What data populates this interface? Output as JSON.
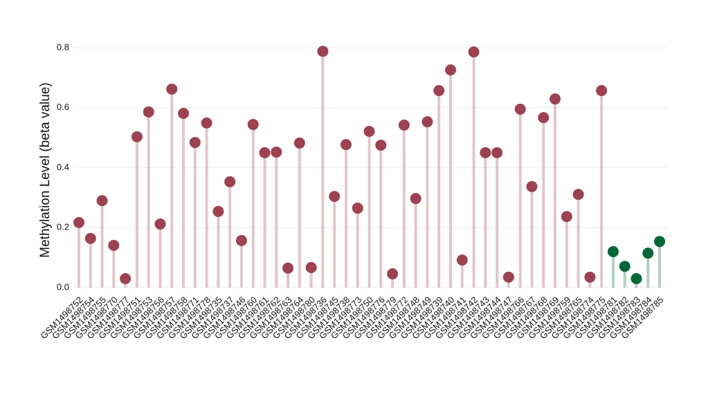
{
  "chart_data": {
    "type": "lollipop",
    "y_label": "Methylation Level (beta value)",
    "categories": [
      "GSM1498752",
      "GSM1498754",
      "GSM1498755",
      "GSM1498770",
      "GSM1498777",
      "GSM1498751",
      "GSM1498753",
      "GSM1498756",
      "GSM1498757",
      "GSM1498758",
      "GSM1498771",
      "GSM1498778",
      "GSM1498735",
      "GSM1498737",
      "GSM1498746",
      "GSM1498760",
      "GSM1498761",
      "GSM1498762",
      "GSM1498763",
      "GSM1498764",
      "GSM1498780",
      "GSM1498736",
      "GSM1498745",
      "GSM1498738",
      "GSM1498773",
      "GSM1498750",
      "GSM1498776",
      "GSM1498779",
      "GSM1498772",
      "GSM1498748",
      "GSM1498749",
      "GSM1498739",
      "GSM1498740",
      "GSM1498741",
      "GSM1498742",
      "GSM1498743",
      "GSM1498744",
      "GSM1498747",
      "GSM1498766",
      "GSM1498767",
      "GSM1498768",
      "GSM1498769",
      "GSM1498759",
      "GSM1498765",
      "GSM1498774",
      "GSM1498775",
      "GSM1498781",
      "GSM1498782",
      "GSM1498783",
      "GSM1498784",
      "GSM1498785"
    ],
    "values": [
      0.217,
      0.164,
      0.29,
      0.141,
      0.03,
      0.503,
      0.586,
      0.212,
      0.662,
      0.581,
      0.484,
      0.549,
      0.254,
      0.353,
      0.157,
      0.544,
      0.45,
      0.452,
      0.065,
      0.482,
      0.067,
      0.788,
      0.304,
      0.477,
      0.265,
      0.521,
      0.475,
      0.046,
      0.542,
      0.297,
      0.553,
      0.657,
      0.726,
      0.092,
      0.786,
      0.45,
      0.45,
      0.035,
      0.595,
      0.337,
      0.567,
      0.629,
      0.237,
      0.311,
      0.035,
      0.657,
      0.12,
      0.071,
      0.03,
      0.115,
      0.154
    ],
    "point_colors": [
      "#9e4150",
      "#9e4150",
      "#9e4150",
      "#9e4150",
      "#9e4150",
      "#9e4150",
      "#9e4150",
      "#9e4150",
      "#9e4150",
      "#9e4150",
      "#9e4150",
      "#9e4150",
      "#9e4150",
      "#9e4150",
      "#9e4150",
      "#9e4150",
      "#9e4150",
      "#9e4150",
      "#9e4150",
      "#9e4150",
      "#9e4150",
      "#9e4150",
      "#9e4150",
      "#9e4150",
      "#9e4150",
      "#9e4150",
      "#9e4150",
      "#9e4150",
      "#9e4150",
      "#9e4150",
      "#9e4150",
      "#9e4150",
      "#9e4150",
      "#9e4150",
      "#9e4150",
      "#9e4150",
      "#9e4150",
      "#9e4150",
      "#9e4150",
      "#9e4150",
      "#9e4150",
      "#9e4150",
      "#9e4150",
      "#9e4150",
      "#9e4150",
      "#9e4150",
      "#006837",
      "#006837",
      "#006837",
      "#006837",
      "#006837"
    ],
    "ylim": [
      0,
      0.8
    ],
    "yticks": [
      {
        "value": 0,
        "label": "0.0"
      },
      0.2,
      0.4,
      0.6,
      0.8
    ],
    "grid": true
  }
}
